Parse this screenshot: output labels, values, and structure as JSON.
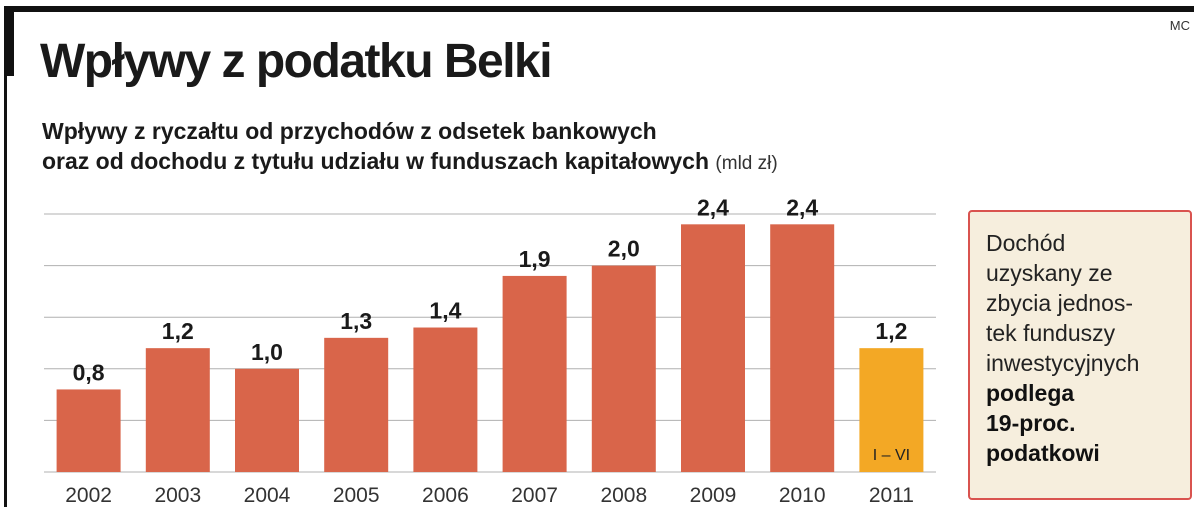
{
  "credit": "MC",
  "title": "Wpływy z podatku Belki",
  "subtitle_line1": "Wpływy z ryczałtu od przychodów z odsetek bankowych",
  "subtitle_line2": "oraz od dochodu z tytułu udziału w funduszach kapitałowych",
  "unit": "(mld zł)",
  "note": {
    "text_lines": [
      "Dochód",
      "uzyskany ze",
      "zbycia jednos-",
      "tek funduszy",
      "inwestycyjnych"
    ],
    "bold_lines": [
      "podlega",
      "19-proc.",
      "podatkowi"
    ]
  },
  "colors": {
    "bar": "#d9654a",
    "highlight_bar": "#f3a825",
    "grid": "#b0b0b0",
    "note_border": "#d9534f",
    "note_bg": "#f6eedd"
  },
  "chart_data": {
    "type": "bar",
    "title": "Wpływy z podatku Belki",
    "ylabel": "mld zł",
    "categories": [
      "2002",
      "2003",
      "2004",
      "2005",
      "2006",
      "2007",
      "2008",
      "2009",
      "2010",
      "2011"
    ],
    "values": [
      0.8,
      1.2,
      1.0,
      1.3,
      1.4,
      1.9,
      2.0,
      2.4,
      2.4,
      1.2
    ],
    "value_labels": [
      "0,8",
      "1,2",
      "1,0",
      "1,3",
      "1,4",
      "1,9",
      "2,0",
      "2,4",
      "2,4",
      "1,2"
    ],
    "highlight_index": 9,
    "highlight_label": "I – VI",
    "ylim": [
      0,
      2.5
    ],
    "grid_values": [
      0,
      0.5,
      1.0,
      1.5,
      2.0,
      2.5
    ],
    "grid": true
  }
}
